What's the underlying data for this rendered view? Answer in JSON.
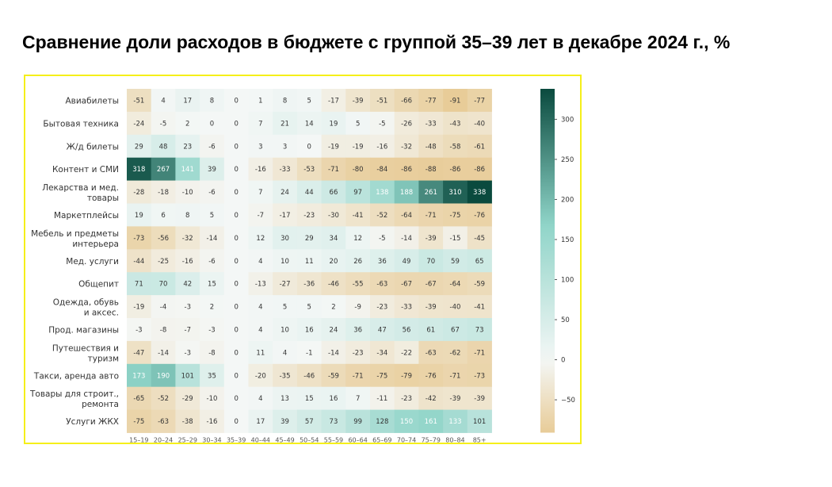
{
  "title": "Сравнение доли расходов в бюджете с группой 35–39 лет в декабре 2024 г., %",
  "chart_data": {
    "type": "heatmap",
    "columns": [
      "15–19",
      "20–24",
      "25–29",
      "30–34",
      "35–39",
      "40–44",
      "45–49",
      "50–54",
      "55–59",
      "60–64",
      "65–69",
      "70–74",
      "75–79",
      "80–84",
      "85+"
    ],
    "rows": [
      {
        "label": [
          "Авиабилеты"
        ],
        "values": [
          -51,
          4,
          17,
          8,
          0,
          1,
          8,
          5,
          -17,
          -39,
          -51,
          -66,
          -77,
          -91,
          -77
        ]
      },
      {
        "label": [
          "Бытовая техника"
        ],
        "values": [
          -24,
          -5,
          2,
          0,
          0,
          7,
          21,
          14,
          19,
          5,
          -5,
          -26,
          -33,
          -43,
          -40
        ]
      },
      {
        "label": [
          "Ж/д билеты"
        ],
        "values": [
          29,
          48,
          23,
          -6,
          0,
          3,
          3,
          0,
          -19,
          -19,
          -16,
          -32,
          -48,
          -58,
          -61
        ]
      },
      {
        "label": [
          "Контент и СМИ"
        ],
        "values": [
          318,
          267,
          141,
          39,
          0,
          -16,
          -33,
          -53,
          -71,
          -80,
          -84,
          -86,
          -88,
          -86,
          -86
        ]
      },
      {
        "label": [
          "Лекарства и мед.",
          "товары"
        ],
        "values": [
          -28,
          -18,
          -10,
          -6,
          0,
          7,
          24,
          44,
          66,
          97,
          138,
          188,
          261,
          310,
          338
        ]
      },
      {
        "label": [
          "Маркетплейсы"
        ],
        "values": [
          19,
          6,
          8,
          5,
          0,
          -7,
          -17,
          -23,
          -30,
          -41,
          -52,
          -64,
          -71,
          -75,
          -76
        ]
      },
      {
        "label": [
          "Мебель и предметы",
          "интерьера"
        ],
        "values": [
          -73,
          -56,
          -32,
          -14,
          0,
          12,
          30,
          29,
          34,
          12,
          -5,
          -14,
          -39,
          -15,
          -45
        ]
      },
      {
        "label": [
          "Мед. услуги"
        ],
        "values": [
          -44,
          -25,
          -16,
          -6,
          0,
          4,
          10,
          11,
          20,
          26,
          36,
          49,
          70,
          59,
          65
        ]
      },
      {
        "label": [
          "Общепит"
        ],
        "values": [
          71,
          70,
          42,
          15,
          0,
          -13,
          -27,
          -36,
          -46,
          -55,
          -63,
          -67,
          -67,
          -64,
          -59
        ]
      },
      {
        "label": [
          "Одежда, обувь",
          "и аксес."
        ],
        "values": [
          -19,
          -4,
          -3,
          2,
          0,
          4,
          5,
          5,
          2,
          -9,
          -23,
          -33,
          -39,
          -40,
          -41
        ]
      },
      {
        "label": [
          "Прод. магазины"
        ],
        "values": [
          -3,
          -8,
          -7,
          -3,
          0,
          4,
          10,
          16,
          24,
          36,
          47,
          56,
          61,
          67,
          73
        ]
      },
      {
        "label": [
          "Путешествия и",
          "туризм"
        ],
        "values": [
          -47,
          -14,
          -3,
          -8,
          0,
          11,
          4,
          -1,
          -14,
          -23,
          -34,
          -22,
          -63,
          -62,
          -71
        ]
      },
      {
        "label": [
          "Такси, аренда авто"
        ],
        "values": [
          173,
          190,
          101,
          35,
          0,
          -20,
          -35,
          -46,
          -59,
          -71,
          -75,
          -79,
          -76,
          -71,
          -73
        ]
      },
      {
        "label": [
          "Товары для строит.,",
          "ремонта"
        ],
        "values": [
          -65,
          -52,
          -29,
          -10,
          0,
          4,
          13,
          15,
          16,
          7,
          -11,
          -23,
          -42,
          -39,
          -39
        ]
      },
      {
        "label": [
          "Услуги ЖКХ"
        ],
        "values": [
          -75,
          -63,
          -38,
          -16,
          0,
          17,
          39,
          57,
          73,
          99,
          128,
          150,
          161,
          133,
          101
        ]
      }
    ],
    "colorbar": {
      "ticks": [
        300,
        250,
        200,
        150,
        100,
        50,
        0,
        -50
      ],
      "min": -91,
      "max": 338,
      "colors": {
        "negative": "#e8cc98",
        "zero": "#f4f7f6",
        "positive_mid": "#8fd4c8",
        "positive": "#0a4a3e"
      }
    }
  }
}
